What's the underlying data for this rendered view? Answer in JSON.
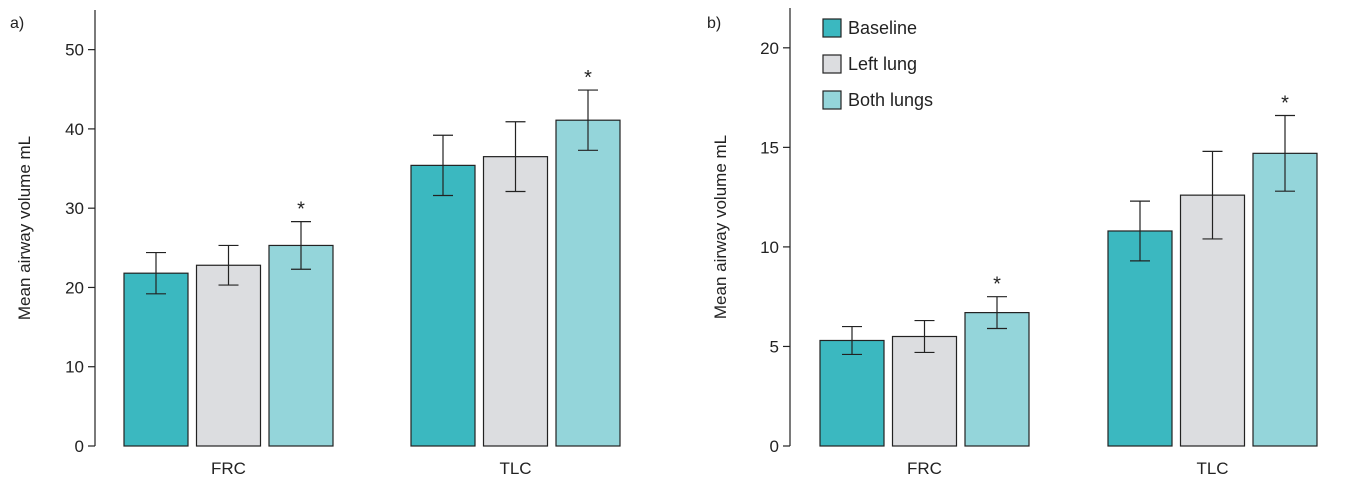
{
  "chart_data": [
    {
      "type": "bar",
      "panel_label": "a)",
      "categories": [
        "FRC",
        "TLC"
      ],
      "ylabel": "Mean airway volume mL",
      "ylim": [
        0,
        55
      ],
      "yticks": [
        0,
        10,
        20,
        30,
        40,
        50
      ],
      "series": [
        {
          "name": "Baseline",
          "values": [
            21.8,
            35.4
          ],
          "error": [
            2.6,
            3.8
          ],
          "significant": [
            false,
            false
          ]
        },
        {
          "name": "Left lung",
          "values": [
            22.8,
            36.5
          ],
          "error": [
            2.5,
            4.4
          ],
          "significant": [
            false,
            false
          ]
        },
        {
          "name": "Both lungs",
          "values": [
            25.3,
            41.1
          ],
          "error": [
            3.0,
            3.8
          ],
          "significant": [
            true,
            true
          ]
        }
      ],
      "significance_marker": "*"
    },
    {
      "type": "bar",
      "panel_label": "b)",
      "categories": [
        "FRC",
        "TLC"
      ],
      "ylabel": "Mean airway volume mL",
      "ylim": [
        0,
        22
      ],
      "yticks": [
        0,
        5,
        10,
        15,
        20
      ],
      "series": [
        {
          "name": "Baseline",
          "values": [
            5.3,
            10.8
          ],
          "error": [
            0.7,
            1.5
          ],
          "significant": [
            false,
            false
          ]
        },
        {
          "name": "Left lung",
          "values": [
            5.5,
            12.6
          ],
          "error": [
            0.8,
            2.2
          ],
          "significant": [
            false,
            false
          ]
        },
        {
          "name": "Both lungs",
          "values": [
            6.7,
            14.7
          ],
          "error": [
            0.8,
            1.9
          ],
          "significant": [
            true,
            true
          ]
        }
      ],
      "significance_marker": "*"
    }
  ],
  "legend": {
    "position": "top-left of panel b",
    "items": [
      "Baseline",
      "Left lung",
      "Both lungs"
    ]
  },
  "colors": {
    "Baseline": "#3bb8c0",
    "Left lung": "#dcdde0",
    "Both lungs": "#94d5da",
    "stroke": "#222222"
  }
}
